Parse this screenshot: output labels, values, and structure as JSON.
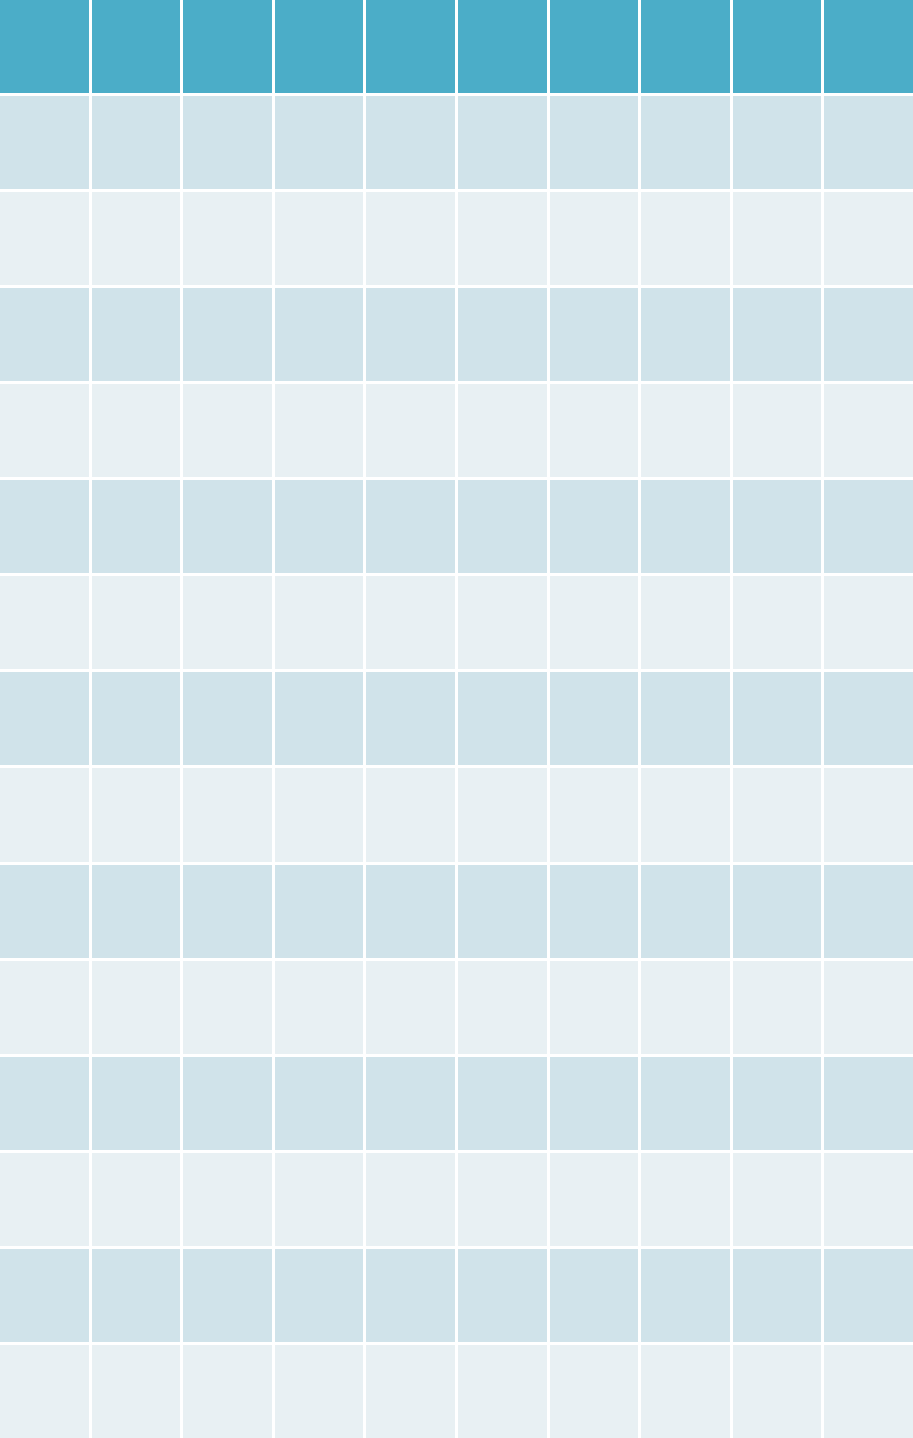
{
  "table": {
    "colors": {
      "header": "#4badc8",
      "band_dark": "#d0e3ea",
      "band_light": "#e8f0f3",
      "border": "#ffffff"
    },
    "columns": [
      "",
      "",
      "",
      "",
      "",
      "",
      "",
      "",
      "",
      ""
    ],
    "rows": [
      [
        "",
        "",
        "",
        "",
        "",
        "",
        "",
        "",
        "",
        ""
      ],
      [
        "",
        "",
        "",
        "",
        "",
        "",
        "",
        "",
        "",
        ""
      ],
      [
        "",
        "",
        "",
        "",
        "",
        "",
        "",
        "",
        "",
        ""
      ],
      [
        "",
        "",
        "",
        "",
        "",
        "",
        "",
        "",
        "",
        ""
      ],
      [
        "",
        "",
        "",
        "",
        "",
        "",
        "",
        "",
        "",
        ""
      ],
      [
        "",
        "",
        "",
        "",
        "",
        "",
        "",
        "",
        "",
        ""
      ],
      [
        "",
        "",
        "",
        "",
        "",
        "",
        "",
        "",
        "",
        ""
      ],
      [
        "",
        "",
        "",
        "",
        "",
        "",
        "",
        "",
        "",
        ""
      ],
      [
        "",
        "",
        "",
        "",
        "",
        "",
        "",
        "",
        "",
        ""
      ],
      [
        "",
        "",
        "",
        "",
        "",
        "",
        "",
        "",
        "",
        ""
      ],
      [
        "",
        "",
        "",
        "",
        "",
        "",
        "",
        "",
        "",
        ""
      ],
      [
        "",
        "",
        "",
        "",
        "",
        "",
        "",
        "",
        "",
        ""
      ],
      [
        "",
        "",
        "",
        "",
        "",
        "",
        "",
        "",
        "",
        ""
      ],
      [
        "",
        "",
        "",
        "",
        "",
        "",
        "",
        "",
        "",
        ""
      ]
    ]
  }
}
